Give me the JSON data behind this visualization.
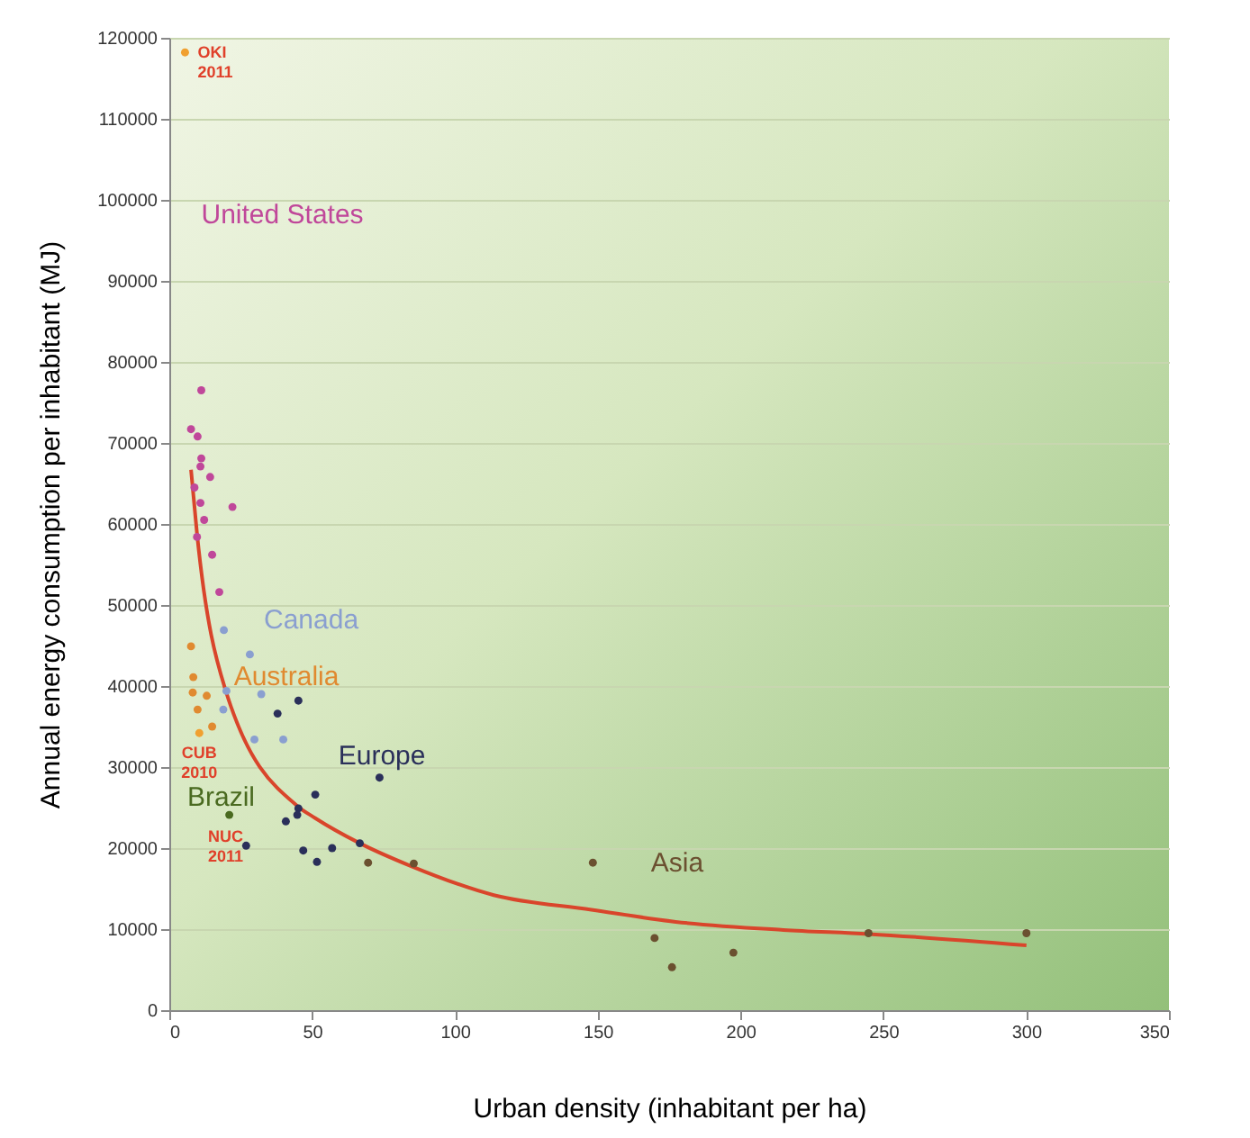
{
  "chart_data": {
    "type": "scatter",
    "xlabel": "Urban density (inhabitant per ha)",
    "ylabel": "Annual energy consumption per inhabitant (MJ)",
    "xlim": [
      0,
      350
    ],
    "xticks": [
      0,
      50,
      100,
      150,
      200,
      250,
      300,
      350
    ],
    "ylim": [
      0,
      120000
    ],
    "yticks": [
      0,
      10000,
      20000,
      30000,
      40000,
      50000,
      60000,
      70000,
      80000,
      90000,
      100000,
      110000,
      120000
    ],
    "grid": "y",
    "marker": "circle",
    "series": [
      {
        "name": "United States",
        "color": "#c0479a",
        "x": [
          11.2,
          7.6,
          9.9,
          11.2,
          10.9,
          14.3,
          8.8,
          10.9,
          22.1,
          12.2,
          9.7,
          15,
          17.5
        ],
        "values": [
          76500,
          71700,
          70800,
          68100,
          67100,
          65800,
          64500,
          62600,
          62100,
          60500,
          58400,
          56200,
          51600
        ]
      },
      {
        "name": "Canada",
        "color": "#8a9fd0",
        "x": [
          19.1,
          28.2,
          32.2,
          20,
          18.9,
          29.8,
          39.9
        ],
        "values": [
          46900,
          43900,
          39000,
          39400,
          37100,
          33400,
          33400
        ]
      },
      {
        "name": "Australia",
        "color": "#e08a30",
        "x": [
          7.6,
          8.4,
          8.2,
          13.1,
          9.9,
          15
        ],
        "values": [
          44900,
          41100,
          39200,
          38800,
          37100,
          35000
        ]
      },
      {
        "name": "Europe",
        "color": "#2a2f5a",
        "x": [
          45.2,
          37.9,
          73.6,
          51.1,
          45.2,
          44.8,
          40.8,
          26.9,
          66.7,
          46.9,
          51.7,
          57
        ],
        "values": [
          38200,
          36600,
          28700,
          26600,
          24900,
          24100,
          23300,
          20300,
          20600,
          19700,
          18300,
          20000
        ]
      },
      {
        "name": "Brazil",
        "color": "#4a6a20",
        "x": [
          21
        ],
        "values": [
          24100
        ]
      },
      {
        "name": "Asia",
        "color": "#6b5030",
        "x": [
          69.6,
          85.6,
          148.3,
          169.9,
          176,
          197.5,
          244.8,
          300.1
        ],
        "values": [
          18200,
          18100,
          18200,
          8900,
          5300,
          7100,
          9500,
          9500
        ]
      },
      {
        "color": "#f0a030",
        "x": [
          5.5,
          10.5
        ],
        "values": [
          118200,
          34200
        ]
      },
      {
        "type": "line",
        "marker": "none",
        "color": "#d9452b",
        "x": [
          7.6,
          9.7,
          19.6,
          44.8,
          51.1,
          66.7,
          84.5,
          113.6,
          147.8,
          177.3,
          215,
          244.8,
          300.1
        ],
        "values": [
          66700,
          58800,
          39600,
          25200,
          23700,
          20600,
          17800,
          14200,
          12400,
          10900,
          9900,
          9400,
          8000
        ]
      }
    ],
    "annotations": [
      {
        "text": "OKI\n2011",
        "x": 5.5,
        "y": 118200
      },
      {
        "text": "CUB\n2010",
        "x": 10.5,
        "y": 34200
      },
      {
        "text": "NUC\n2011",
        "x": 21,
        "y": 24100
      }
    ]
  }
}
